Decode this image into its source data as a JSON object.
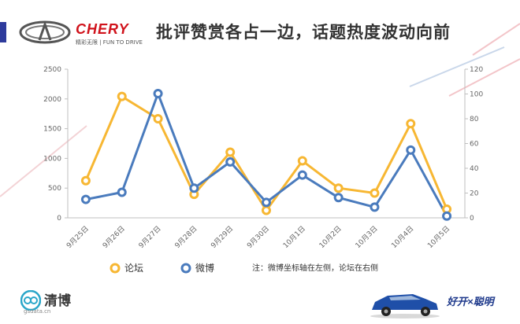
{
  "header": {
    "title": "批评赞赏各占一边，话题热度波动向前",
    "brand": "CHERY",
    "brand_slogan": "精彩无限 | FUN TO DRIVE"
  },
  "footer": {
    "logo_text": "清博",
    "logo_url": "gsdata.cn",
    "slogan": "好开×聪明"
  },
  "note": "注：微博坐标轴在左侧，论坛在右侧",
  "colors": {
    "forum": "#f7b733",
    "weibo": "#4a7bbd",
    "brand_red": "#d0121b",
    "header_blue": "#2e3b9c"
  },
  "chart_data": {
    "type": "line",
    "categories": [
      "9月25日",
      "9月26日",
      "9月27日",
      "9月28日",
      "9月29日",
      "9月30日",
      "10月1日",
      "10月2日",
      "10月3日",
      "10月4日",
      "10月5日"
    ],
    "series": [
      {
        "name": "论坛",
        "axis": "right",
        "values": [
          30,
          98,
          80,
          19,
          53,
          6,
          46,
          24,
          20,
          76,
          7
        ]
      },
      {
        "name": "微博",
        "axis": "left",
        "values": [
          310,
          430,
          2090,
          500,
          940,
          260,
          720,
          340,
          180,
          1140,
          30
        ]
      }
    ],
    "yaxis_left": {
      "min": 0,
      "max": 2500,
      "ticks": [
        0,
        500,
        1000,
        1500,
        2000,
        2500
      ]
    },
    "yaxis_right": {
      "min": 0,
      "max": 120,
      "ticks": [
        0,
        20,
        40,
        60,
        80,
        100,
        120
      ]
    },
    "legend_position": "bottom",
    "grid": false
  }
}
